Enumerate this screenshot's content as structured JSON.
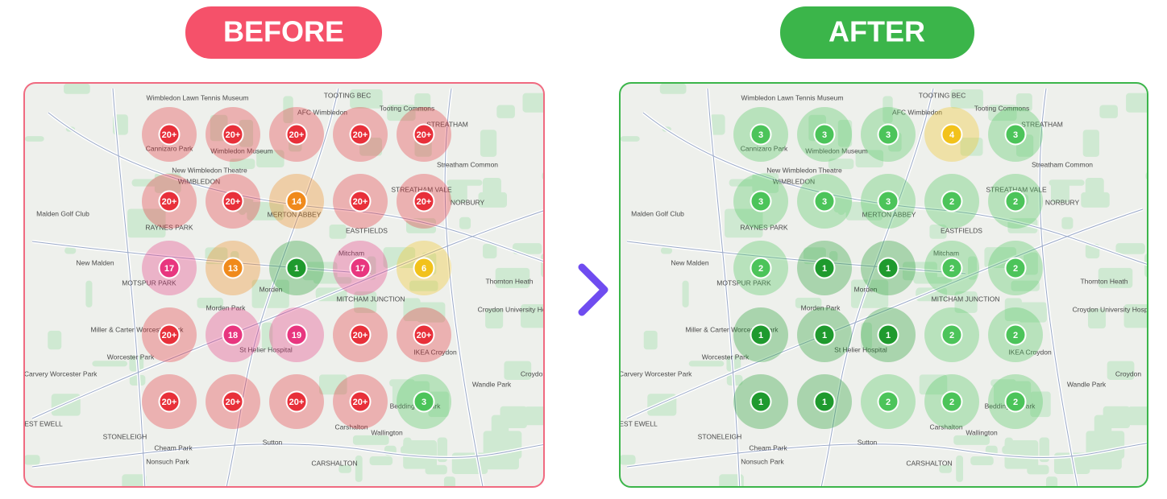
{
  "before": {
    "label": "BEFORE",
    "clusters": [
      {
        "label": "20+",
        "color": "#e8303a"
      },
      {
        "label": "20+",
        "color": "#e8303a"
      },
      {
        "label": "20+",
        "color": "#e8303a"
      },
      {
        "label": "20+",
        "color": "#e8303a"
      },
      {
        "label": "20+",
        "color": "#e8303a"
      },
      {
        "label": "20+",
        "color": "#e8303a"
      },
      {
        "label": "20+",
        "color": "#e8303a"
      },
      {
        "label": "14",
        "color": "#f08a1c"
      },
      {
        "label": "20+",
        "color": "#e8303a"
      },
      {
        "label": "20+",
        "color": "#e8303a"
      },
      {
        "label": "17",
        "color": "#e8367f"
      },
      {
        "label": "13",
        "color": "#f08a1c"
      },
      {
        "label": "1",
        "color": "#1f9a2e"
      },
      {
        "label": "17",
        "color": "#e8367f"
      },
      {
        "label": "6",
        "color": "#f2c21b"
      },
      {
        "label": "20+",
        "color": "#e8303a"
      },
      {
        "label": "18",
        "color": "#e8367f"
      },
      {
        "label": "19",
        "color": "#e8367f"
      },
      {
        "label": "20+",
        "color": "#e8303a"
      },
      {
        "label": "20+",
        "color": "#e8303a"
      },
      {
        "label": "20+",
        "color": "#e8303a"
      },
      {
        "label": "20+",
        "color": "#e8303a"
      },
      {
        "label": "20+",
        "color": "#e8303a"
      },
      {
        "label": "20+",
        "color": "#e8303a"
      },
      {
        "label": "3",
        "color": "#4cc45a"
      }
    ]
  },
  "after": {
    "label": "AFTER",
    "clusters": [
      {
        "label": "3",
        "color": "#4cc45a"
      },
      {
        "label": "3",
        "color": "#4cc45a"
      },
      {
        "label": "3",
        "color": "#4cc45a"
      },
      {
        "label": "4",
        "color": "#f2c21b"
      },
      {
        "label": "3",
        "color": "#4cc45a"
      },
      {
        "label": "3",
        "color": "#4cc45a"
      },
      {
        "label": "3",
        "color": "#4cc45a"
      },
      {
        "label": "3",
        "color": "#4cc45a"
      },
      {
        "label": "2",
        "color": "#4cc45a"
      },
      {
        "label": "2",
        "color": "#4cc45a"
      },
      {
        "label": "2",
        "color": "#4cc45a"
      },
      {
        "label": "1",
        "color": "#1f9a2e"
      },
      {
        "label": "1",
        "color": "#1f9a2e"
      },
      {
        "label": "2",
        "color": "#4cc45a"
      },
      {
        "label": "2",
        "color": "#4cc45a"
      },
      {
        "label": "1",
        "color": "#1f9a2e"
      },
      {
        "label": "1",
        "color": "#1f9a2e"
      },
      {
        "label": "1",
        "color": "#1f9a2e"
      },
      {
        "label": "2",
        "color": "#4cc45a"
      },
      {
        "label": "2",
        "color": "#4cc45a"
      },
      {
        "label": "1",
        "color": "#1f9a2e"
      },
      {
        "label": "1",
        "color": "#1f9a2e"
      },
      {
        "label": "2",
        "color": "#4cc45a"
      },
      {
        "label": "2",
        "color": "#4cc45a"
      },
      {
        "label": "2",
        "color": "#4cc45a"
      }
    ]
  },
  "map": {
    "places": [
      "Wimbledon Lawn Tennis Museum",
      "TOOTING BEC",
      "AFC Wimbledon",
      "Tooting Commons",
      "STREATHAM",
      "Cannizaro Park",
      "Wimbledon Museum",
      "New Wimbledon Theatre",
      "Streatham Common",
      "WIMBLEDON",
      "Malden Golf Club",
      "MERTON ABBEY",
      "STREATHAM VALE",
      "NORBURY",
      "RAYNES PARK",
      "EASTFIELDS",
      "New Malden",
      "MOTSPUR PARK",
      "Morden",
      "Mitcham",
      "MITCHAM JUNCTION",
      "Thornton Heath",
      "Morden Park",
      "Croydon University Hospital",
      "Miller & Carter Worcester Park",
      "St Helier Hospital",
      "IKEA Croydon",
      "Worcester Park",
      "Toby Carvery Worcester Park",
      "Croydon",
      "Wandle Park",
      "Beddington Park",
      "Carshalton",
      "Wallington",
      "WEST EWELL",
      "STONELEIGH",
      "Cheam Park",
      "Nonsuch Park",
      "Sutton",
      "CARSHALTON"
    ]
  }
}
